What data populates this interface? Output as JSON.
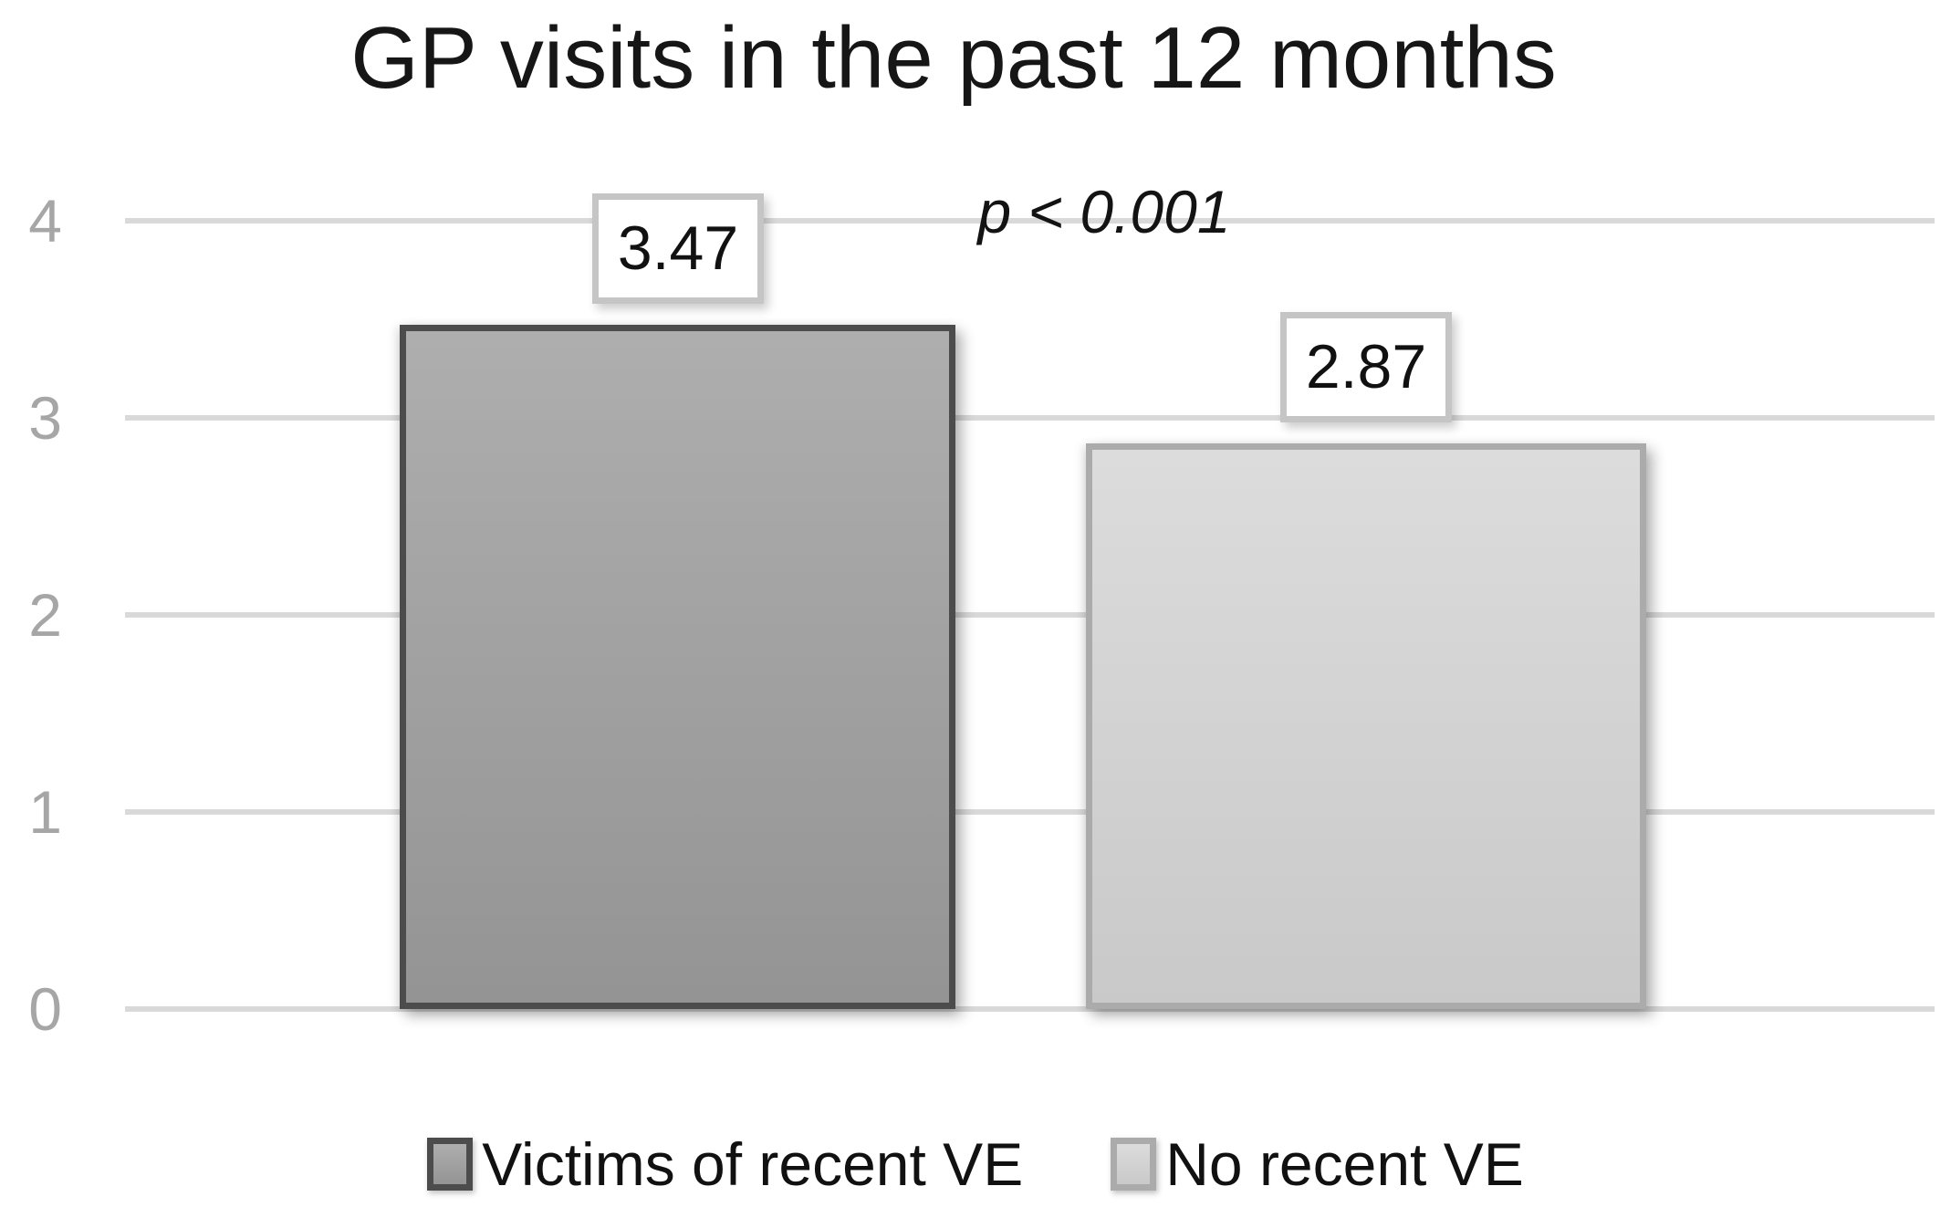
{
  "chart_data": {
    "type": "bar",
    "title": "GP visits in the past 12 months",
    "categories": [
      "Victims of recent VE",
      "No recent VE"
    ],
    "values": [
      3.47,
      2.87
    ],
    "value_labels": [
      "3.47",
      "2.87"
    ],
    "annotation": "p < 0.001",
    "xlabel": "",
    "ylabel": "",
    "ylim": [
      0,
      4
    ],
    "yticks": [
      "4",
      "3",
      "2",
      "1",
      "0"
    ],
    "grid": true,
    "grid_color": "#d9d9d9",
    "tick_color": "#a6a6a6",
    "legend_position": "bottom",
    "series_style": [
      {
        "fill_top": "#aeaeae",
        "fill_bottom": "#949494",
        "border": "#4c4c4c"
      },
      {
        "fill_top": "#dcdcdc",
        "fill_bottom": "#c9c9c9",
        "border": "#ababab"
      }
    ],
    "legend": [
      {
        "label": "Victims of recent VE"
      },
      {
        "label": "No recent VE"
      }
    ]
  }
}
